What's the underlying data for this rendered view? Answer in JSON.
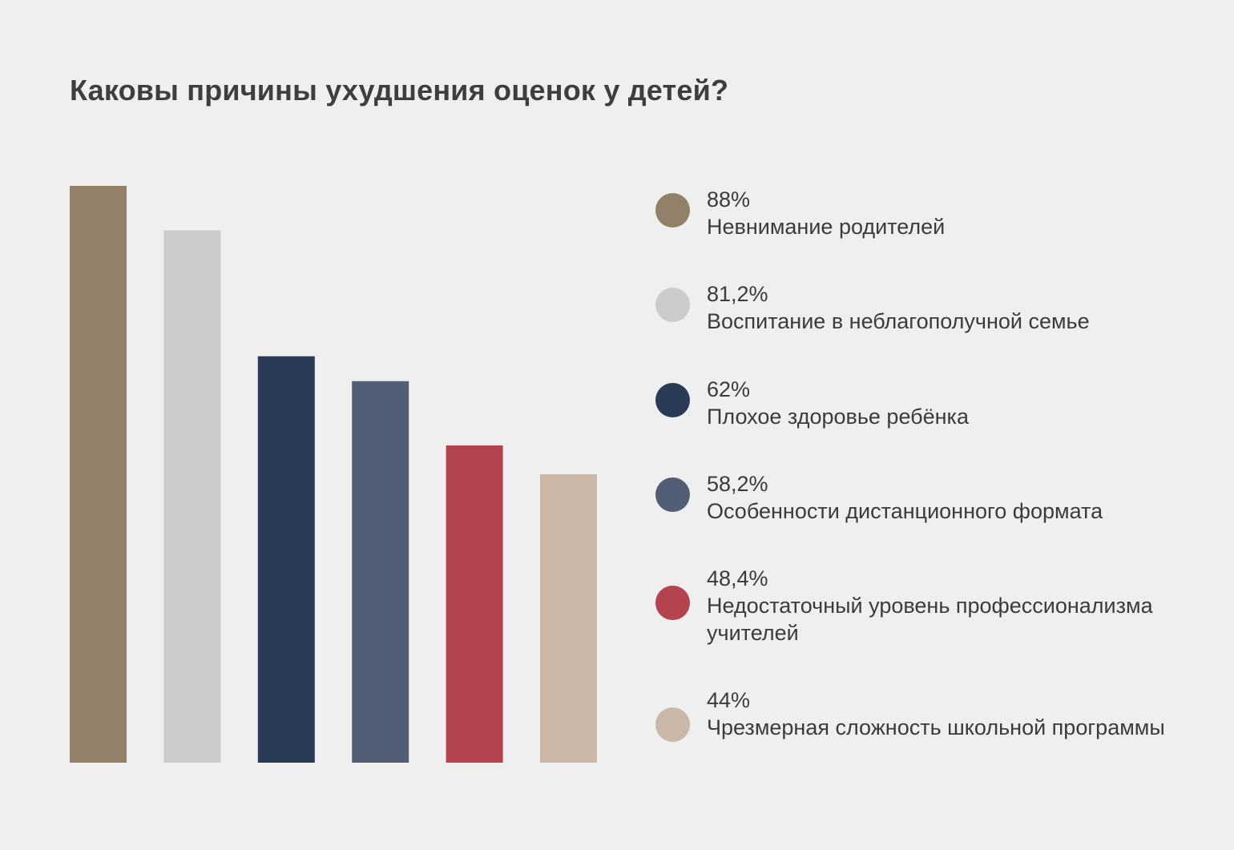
{
  "chart_data": {
    "type": "bar",
    "title": "Каковы причины ухудшения оценок у детей?",
    "categories": [
      "Невнимание родителей",
      "Воспитание в неблагополучной семье",
      "Плохое здоровье ребёнка",
      "Особенности дистанционного формата",
      "Недостаточный уровень профессионализма учителей",
      "Чрезмерная сложность школьной программы"
    ],
    "values": [
      88,
      81.2,
      62,
      58.2,
      48.4,
      44
    ],
    "value_labels": [
      "88%",
      "81,2%",
      "62%",
      "58,2%",
      "48,4%",
      "44%"
    ],
    "colors": [
      "#928068",
      "#cbcbcb",
      "#2b3b56",
      "#525d76",
      "#b4434f",
      "#cbb7a8"
    ],
    "ylim": [
      0,
      88
    ],
    "grid": false,
    "legend_placement": "right",
    "xlabel": "",
    "ylabel": ""
  }
}
